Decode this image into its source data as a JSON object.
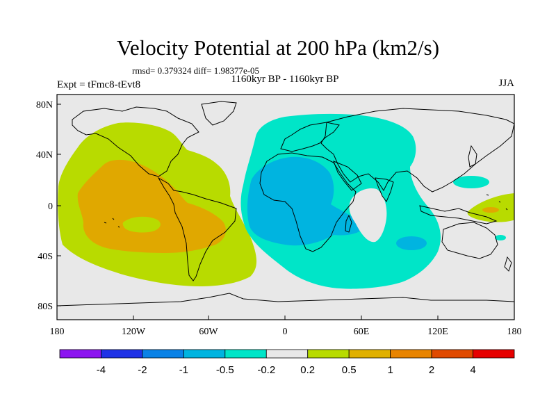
{
  "title": "Velocity Potential at 200 hPa (km2/s)",
  "stats": "rmsd= 0.379324 diff= 1.98377e-05",
  "subtitle": "1160kyr BP - 1160kyr BP",
  "experiment": "Expt = tFmc8-tEvt8",
  "season": "JJA",
  "map": {
    "projection": "cylindrical-equidistant",
    "lon_range": [
      -180,
      180
    ],
    "lat_range": [
      -90,
      90
    ],
    "lon_ticks": [
      "180",
      "120W",
      "60W",
      "0",
      "60E",
      "120E",
      "180"
    ],
    "lat_ticks": [
      "80N",
      "40N",
      "0",
      "40S",
      "80S"
    ],
    "regions": [
      {
        "name": "pacific-americas-positive",
        "level": "0.2 to 0.5",
        "color": "#b8db00"
      },
      {
        "name": "east-pacific-core",
        "level": "0.5 to 1",
        "color": "#e0a800"
      },
      {
        "name": "africa-indian-negative",
        "level": "-0.5 to -0.2",
        "color": "#00e5c8"
      },
      {
        "name": "africa-core",
        "level": "-1 to -0.5",
        "color": "#00b4e0"
      },
      {
        "name": "west-pacific-positive",
        "level": "0.2 to 0.5",
        "color": "#b8db00"
      }
    ]
  },
  "colorbar": {
    "colors": [
      "#8c14f0",
      "#1f32e6",
      "#0a82e6",
      "#00b4e0",
      "#00e5c8",
      "#e8e8e8",
      "#b8db00",
      "#e0b000",
      "#e88400",
      "#e04a00",
      "#e60000"
    ],
    "labels": [
      "-4",
      "-2",
      "-1",
      "-0.5",
      "-0.2",
      "0.2",
      "0.5",
      "1",
      "2",
      "4"
    ]
  }
}
